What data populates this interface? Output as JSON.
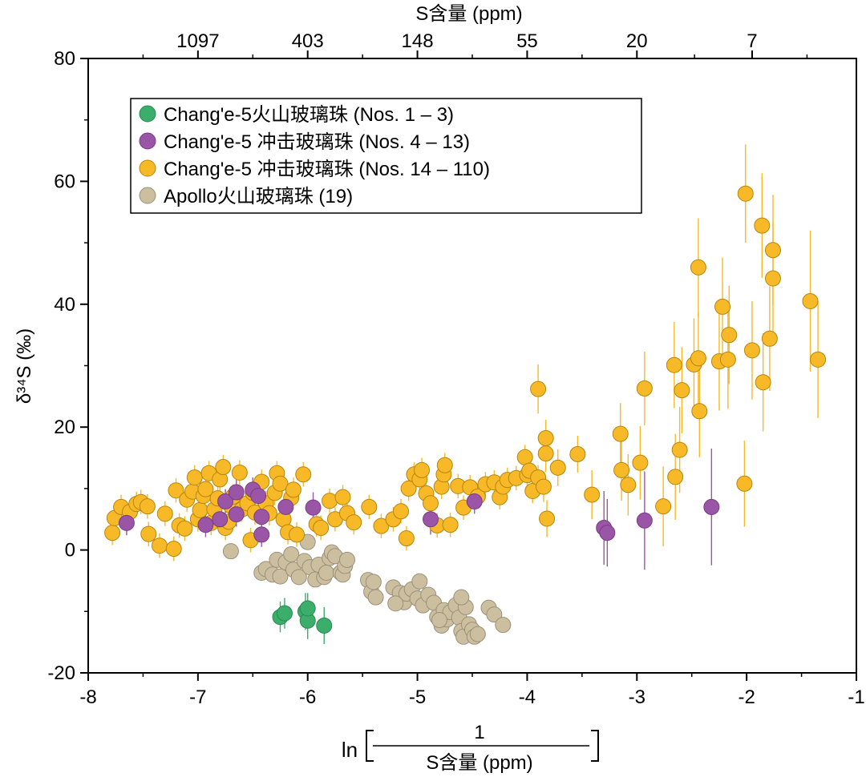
{
  "chart_data": {
    "type": "scatter",
    "xlabel_prefix": "ln",
    "xlabel_numerator": "1",
    "xlabel_denominator": "S含量 (ppm)",
    "ylabel": "δ³⁴S (‰)",
    "top_axis_label": "S含量 (ppm)",
    "xlim": [
      -8,
      -1
    ],
    "ylim": [
      -20,
      80
    ],
    "x_ticks": [
      "-8",
      "-7",
      "-6",
      "-5",
      "-4",
      "-3",
      "-2",
      "-1"
    ],
    "y_ticks": [
      "-20",
      "0",
      "20",
      "40",
      "60",
      "80"
    ],
    "top_ticks": [
      {
        "label": "1097",
        "x": -7.0
      },
      {
        "label": "403",
        "x": -6.0
      },
      {
        "label": "148",
        "x": -5.0
      },
      {
        "label": "55",
        "x": -4.0
      },
      {
        "label": "20",
        "x": -3.0
      },
      {
        "label": "7",
        "x": -1.95
      }
    ],
    "series": [
      {
        "name": "Chang'e-5火山玻璃珠 (Nos. 1 – 3)",
        "color": "#3aae6a",
        "stroke": "#2a8a50",
        "points": [
          [
            -6.25,
            -10.9,
            2.5
          ],
          [
            -6.21,
            -10.3,
            2.5
          ],
          [
            -6.02,
            -10.0,
            3.0
          ],
          [
            -6.0,
            -11.5,
            3.0
          ],
          [
            -6.0,
            -9.5,
            2.5
          ],
          [
            -5.85,
            -12.3,
            3.0
          ]
        ]
      },
      {
        "name": "Chang'e-5 冲击玻璃珠 (Nos. 4 – 13)",
        "color": "#9b55a6",
        "stroke": "#7a3d85",
        "points": [
          [
            -7.65,
            4.4,
            2.0
          ],
          [
            -6.93,
            4.1,
            2.0
          ],
          [
            -6.8,
            5.0,
            2.0
          ],
          [
            -6.75,
            7.9,
            2.0
          ],
          [
            -6.65,
            9.4,
            2.0
          ],
          [
            -6.65,
            5.8,
            2.0
          ],
          [
            -6.5,
            9.8,
            2.0
          ],
          [
            -6.45,
            8.8,
            2.0
          ],
          [
            -6.42,
            5.4,
            2.0
          ],
          [
            -6.42,
            2.5,
            2.0
          ],
          [
            -6.2,
            7.0,
            2.0
          ],
          [
            -5.95,
            6.9,
            2.5
          ],
          [
            -4.88,
            5.0,
            2.5
          ],
          [
            -4.48,
            7.9,
            2.0
          ],
          [
            -3.3,
            3.6,
            6.0
          ],
          [
            -3.27,
            2.8,
            5.5
          ],
          [
            -2.93,
            4.8,
            8.0
          ],
          [
            -2.32,
            7.0,
            9.5
          ]
        ]
      },
      {
        "name": "Chang'e-5 冲击玻璃珠 (Nos. 14 – 110)",
        "color": "#f7b927",
        "stroke": "#b8860b",
        "points": [
          [
            -7.78,
            2.8,
            2.0
          ],
          [
            -7.76,
            5.2,
            2.0
          ],
          [
            -7.7,
            7.0,
            2.0
          ],
          [
            -7.62,
            6.2,
            2.0
          ],
          [
            -7.56,
            7.5,
            2.0
          ],
          [
            -7.52,
            7.8,
            2.0
          ],
          [
            -7.46,
            7.1,
            2.0
          ],
          [
            -7.45,
            2.6,
            2.0
          ],
          [
            -7.35,
            0.7,
            2.0
          ],
          [
            -7.3,
            5.9,
            2.0
          ],
          [
            -7.22,
            0.2,
            2.0
          ],
          [
            -7.2,
            9.7,
            2.0
          ],
          [
            -7.17,
            4.0,
            2.0
          ],
          [
            -7.12,
            3.5,
            2.0
          ],
          [
            -7.1,
            8.2,
            2.0
          ],
          [
            -7.05,
            9.5,
            2.0
          ],
          [
            -7.03,
            11.8,
            2.0
          ],
          [
            -7.0,
            5.0,
            2.0
          ],
          [
            -6.98,
            6.5,
            2.0
          ],
          [
            -6.95,
            8.8,
            2.0
          ],
          [
            -6.93,
            9.9,
            2.0
          ],
          [
            -6.9,
            12.5,
            2.0
          ],
          [
            -6.88,
            4.4,
            2.0
          ],
          [
            -6.85,
            6.6,
            2.0
          ],
          [
            -6.82,
            8.4,
            2.0
          ],
          [
            -6.8,
            11.5,
            2.0
          ],
          [
            -6.77,
            13.5,
            2.0
          ],
          [
            -6.75,
            3.6,
            2.0
          ],
          [
            -6.72,
            4.6,
            2.0
          ],
          [
            -6.7,
            7.2,
            2.0
          ],
          [
            -6.68,
            8.7,
            2.0
          ],
          [
            -6.62,
            12.6,
            2.0
          ],
          [
            -6.6,
            6.6,
            2.0
          ],
          [
            -6.55,
            7.6,
            2.0
          ],
          [
            -6.52,
            1.6,
            2.0
          ],
          [
            -6.5,
            9.3,
            2.0
          ],
          [
            -6.48,
            6.1,
            2.0
          ],
          [
            -6.42,
            11.1,
            2.0
          ],
          [
            -6.38,
            7.6,
            2.0
          ],
          [
            -6.35,
            6.0,
            2.0
          ],
          [
            -6.3,
            9.3,
            2.0
          ],
          [
            -6.28,
            12.5,
            2.0
          ],
          [
            -6.25,
            10.8,
            2.0
          ],
          [
            -6.22,
            5.0,
            2.0
          ],
          [
            -6.18,
            2.9,
            2.0
          ],
          [
            -6.15,
            8.5,
            2.0
          ],
          [
            -6.13,
            9.8,
            2.0
          ],
          [
            -6.1,
            2.5,
            2.0
          ],
          [
            -6.04,
            12.3,
            2.0
          ],
          [
            -5.92,
            4.2,
            2.0
          ],
          [
            -5.88,
            3.6,
            2.0
          ],
          [
            -5.8,
            8.0,
            2.0
          ],
          [
            -5.75,
            5.0,
            2.0
          ],
          [
            -5.68,
            8.6,
            2.0
          ],
          [
            -5.64,
            6.0,
            2.0
          ],
          [
            -5.58,
            4.5,
            2.0
          ],
          [
            -5.44,
            7.0,
            2.0
          ],
          [
            -5.33,
            3.9,
            2.0
          ],
          [
            -5.22,
            5.0,
            2.0
          ],
          [
            -5.15,
            6.3,
            2.0
          ],
          [
            -5.1,
            1.9,
            2.0
          ],
          [
            -5.08,
            10.0,
            2.0
          ],
          [
            -5.03,
            12.3,
            2.0
          ],
          [
            -4.98,
            11.5,
            2.0
          ],
          [
            -4.96,
            13.0,
            2.0
          ],
          [
            -4.92,
            9.2,
            2.0
          ],
          [
            -4.88,
            7.6,
            2.0
          ],
          [
            -4.82,
            4.0,
            2.0
          ],
          [
            -4.78,
            10.3,
            2.0
          ],
          [
            -4.76,
            12.3,
            2.0
          ],
          [
            -4.75,
            13.8,
            2.0
          ],
          [
            -4.7,
            4.1,
            2.0
          ],
          [
            -4.63,
            10.4,
            2.0
          ],
          [
            -4.58,
            6.9,
            2.0
          ],
          [
            -4.52,
            10.2,
            2.0
          ],
          [
            -4.45,
            8.7,
            2.0
          ],
          [
            -4.38,
            10.7,
            2.0
          ],
          [
            -4.3,
            11.0,
            2.0
          ],
          [
            -4.25,
            8.6,
            2.0
          ],
          [
            -4.22,
            10.3,
            2.0
          ],
          [
            -4.18,
            11.4,
            2.0
          ],
          [
            -4.1,
            11.7,
            2.0
          ],
          [
            -4.02,
            15.1,
            2.0
          ],
          [
            -4.0,
            12.2,
            2.0
          ],
          [
            -3.98,
            12.9,
            2.0
          ],
          [
            -3.95,
            9.6,
            2.0
          ],
          [
            -3.9,
            11.8,
            2.0
          ],
          [
            -3.9,
            26.2,
            4.0
          ],
          [
            -3.85,
            10.3,
            2.5
          ],
          [
            -3.83,
            18.2,
            3.0
          ],
          [
            -3.83,
            15.7,
            3.0
          ],
          [
            -3.82,
            5.1,
            3.0
          ],
          [
            -3.72,
            13.4,
            3.0
          ],
          [
            -3.54,
            15.6,
            3.0
          ],
          [
            -3.41,
            9.0,
            4.0
          ],
          [
            -3.15,
            18.9,
            5.0
          ],
          [
            -3.14,
            13.0,
            5.0
          ],
          [
            -3.08,
            10.6,
            5.0
          ],
          [
            -2.97,
            14.2,
            6.0
          ],
          [
            -2.93,
            26.3,
            6.0
          ],
          [
            -2.76,
            7.1,
            6.5
          ],
          [
            -2.66,
            30.1,
            7.0
          ],
          [
            -2.65,
            11.9,
            7.0
          ],
          [
            -2.61,
            16.3,
            7.0
          ],
          [
            -2.59,
            26.0,
            7.0
          ],
          [
            -2.48,
            30.2,
            7.5
          ],
          [
            -2.44,
            31.2,
            7.5
          ],
          [
            -2.44,
            46.0,
            8.0
          ],
          [
            -2.43,
            22.6,
            7.5
          ],
          [
            -2.25,
            30.7,
            8.0
          ],
          [
            -2.22,
            39.6,
            8.0
          ],
          [
            -2.17,
            31.0,
            8.0
          ],
          [
            -2.16,
            35.0,
            8.0
          ],
          [
            -2.02,
            10.8,
            7.0
          ],
          [
            -2.01,
            58.0,
            8.0
          ],
          [
            -1.95,
            32.5,
            8.0
          ],
          [
            -1.86,
            52.8,
            8.5
          ],
          [
            -1.85,
            27.3,
            8.0
          ],
          [
            -1.79,
            34.4,
            8.5
          ],
          [
            -1.76,
            48.8,
            9.0
          ],
          [
            -1.76,
            44.2,
            9.0
          ],
          [
            -1.42,
            40.5,
            11.5
          ],
          [
            -1.35,
            31.0,
            9.5
          ]
        ]
      },
      {
        "name": "Apollo火山玻璃珠 (19)",
        "color": "#cbbf9f",
        "stroke": "#9b917a",
        "points": [
          [
            -6.7,
            -0.2,
            0
          ],
          [
            -6.42,
            -3.7,
            0
          ],
          [
            -6.38,
            -3.1,
            0
          ],
          [
            -6.32,
            -4.0,
            0
          ],
          [
            -6.28,
            -1.6,
            0
          ],
          [
            -6.25,
            -4.3,
            0
          ],
          [
            -6.2,
            -2.0,
            0
          ],
          [
            -6.15,
            -0.7,
            0
          ],
          [
            -6.13,
            -3.2,
            0
          ],
          [
            -6.08,
            -4.4,
            0
          ],
          [
            -6.03,
            -1.8,
            0
          ],
          [
            -6.0,
            1.3,
            0
          ],
          [
            -5.98,
            -2.8,
            0
          ],
          [
            -5.93,
            -4.8,
            0
          ],
          [
            -5.9,
            -2.4,
            0
          ],
          [
            -5.85,
            -4.4,
            0
          ],
          [
            -5.83,
            -3.7,
            0
          ],
          [
            -5.8,
            -1.3,
            0
          ],
          [
            -5.78,
            -0.4,
            0
          ],
          [
            -5.75,
            -1.0,
            0
          ],
          [
            -5.7,
            -3.7,
            0
          ],
          [
            -5.68,
            -4.0,
            0
          ],
          [
            -5.66,
            -2.6,
            0
          ],
          [
            -5.64,
            -1.6,
            0
          ],
          [
            -5.45,
            -4.9,
            0
          ],
          [
            -5.42,
            -6.8,
            0
          ],
          [
            -5.4,
            -5.2,
            0
          ],
          [
            -5.38,
            -7.7,
            0
          ],
          [
            -5.22,
            -6.1,
            0
          ],
          [
            -5.16,
            -7.0,
            0
          ],
          [
            -5.12,
            -8.5,
            0
          ],
          [
            -5.1,
            -7.1,
            0
          ],
          [
            -5.05,
            -6.4,
            0
          ],
          [
            -5.0,
            -7.9,
            0
          ],
          [
            -4.98,
            -5.1,
            0
          ],
          [
            -4.95,
            -9.0,
            0
          ],
          [
            -4.9,
            -7.3,
            0
          ],
          [
            -4.85,
            -8.6,
            0
          ],
          [
            -4.82,
            -10.9,
            0
          ],
          [
            -4.78,
            -12.3,
            0
          ],
          [
            -4.76,
            -9.8,
            0
          ],
          [
            -4.73,
            -11.3,
            0
          ],
          [
            -4.7,
            -10.1,
            0
          ],
          [
            -4.65,
            -9.0,
            0
          ],
          [
            -4.62,
            -11.0,
            0
          ],
          [
            -4.6,
            -13.2,
            0
          ],
          [
            -4.58,
            -14.1,
            0
          ],
          [
            -4.56,
            -9.3,
            0
          ],
          [
            -4.53,
            -12.1,
            0
          ],
          [
            -4.5,
            -13.0,
            0
          ],
          [
            -4.48,
            -14.1,
            0
          ],
          [
            -4.45,
            -13.7,
            0
          ],
          [
            -4.35,
            -9.4,
            0
          ],
          [
            -4.3,
            -10.5,
            0
          ],
          [
            -4.22,
            -12.2,
            0
          ],
          [
            -4.6,
            -7.7,
            0
          ],
          [
            -4.8,
            -11.4,
            0
          ],
          [
            -5.2,
            -8.7,
            0
          ]
        ]
      }
    ],
    "legend_placement": "top-left",
    "grid": false
  }
}
